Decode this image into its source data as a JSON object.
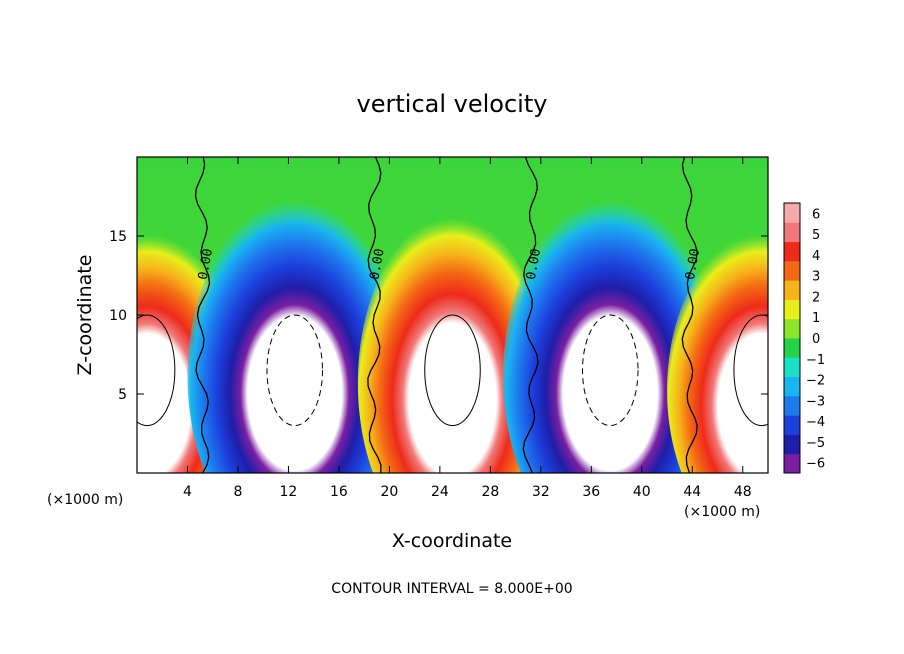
{
  "chart_data": {
    "type": "heatmap",
    "title": "vertical velocity",
    "xlabel": "X-coordinate",
    "ylabel": "Z-coordinate",
    "x_unit_left": "(×1000 m)",
    "x_unit_right": "(×1000 m)",
    "x_ticks": [
      4,
      8,
      12,
      16,
      20,
      24,
      28,
      32,
      36,
      40,
      44,
      48
    ],
    "y_ticks": [
      5,
      10,
      15
    ],
    "xlim": [
      0,
      50
    ],
    "ylim": [
      0,
      20
    ],
    "colorbar": {
      "ticks": [
        6,
        5,
        4,
        3,
        2,
        1,
        0,
        -1,
        -2,
        -3,
        -4,
        -5,
        -6
      ],
      "colors": [
        "#7a1fa2",
        "#1e1ea8",
        "#1c3fdc",
        "#1e78ee",
        "#19b5f0",
        "#1ae0c8",
        "#24d24a",
        "#8ce62a",
        "#e8ee1a",
        "#f6b41a",
        "#f46a14",
        "#ee2a1a",
        "#f07878",
        "#f4aaaa"
      ]
    },
    "contour_interval_text": "CONTOUR INTERVAL = 8.000E+00",
    "zero_contour_label": "0.00",
    "zero_contour_label_count": 4,
    "features": [
      {
        "kind": "updraft",
        "x_center": 0.8,
        "z_top": 14
      },
      {
        "kind": "downdraft",
        "x_center": 12.5,
        "z_top": 16
      },
      {
        "kind": "updraft",
        "x_center": 25.0,
        "z_top": 15
      },
      {
        "kind": "downdraft",
        "x_center": 37.5,
        "z_top": 16
      },
      {
        "kind": "updraft",
        "x_center": 49.5,
        "z_top": 14
      }
    ]
  }
}
